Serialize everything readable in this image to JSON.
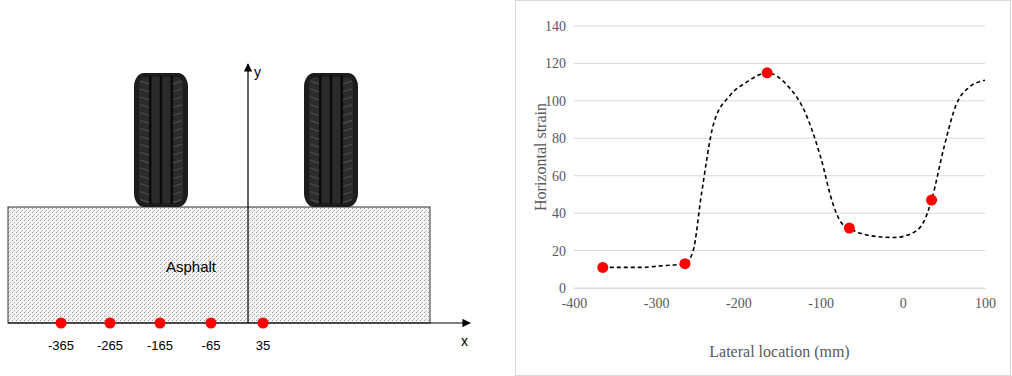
{
  "diagram": {
    "y_axis_label": "y",
    "x_axis_label": "x",
    "layer_label": "Asphalt",
    "sensor_labels": [
      "-365",
      "-265",
      "-165",
      "-65",
      "35"
    ]
  },
  "chart_data": {
    "type": "line",
    "xlabel": "Lateral location (mm)",
    "ylabel": "Horizontal strain",
    "xlim": [
      -400,
      100
    ],
    "xticks": [
      -400,
      -300,
      -200,
      -100,
      0,
      100
    ],
    "ylim": [
      0,
      140
    ],
    "yticks": [
      0,
      20,
      40,
      60,
      80,
      100,
      120,
      140
    ],
    "grid": "y",
    "series": [
      {
        "color": "#000000",
        "line_style": "dashed",
        "marker": "none",
        "x": [
          -365,
          -320,
          -290,
          -265,
          -255,
          -245,
          -230,
          -210,
          -190,
          -165,
          -140,
          -120,
          -100,
          -85,
          -75,
          -65,
          -40,
          -10,
          10,
          25,
          35,
          50,
          65,
          80,
          100
        ],
        "values": [
          11,
          11,
          12,
          13,
          20,
          50,
          88,
          103,
          110,
          115,
          108,
          95,
          70,
          45,
          35,
          32,
          28,
          27,
          29,
          35,
          47,
          75,
          98,
          107,
          111
        ]
      },
      {
        "color": "#ff0000",
        "line_style": "none",
        "marker": "circle",
        "x": [
          -365,
          -265,
          -165,
          -65,
          35
        ],
        "values": [
          11,
          13,
          115,
          32,
          47
        ]
      }
    ]
  }
}
